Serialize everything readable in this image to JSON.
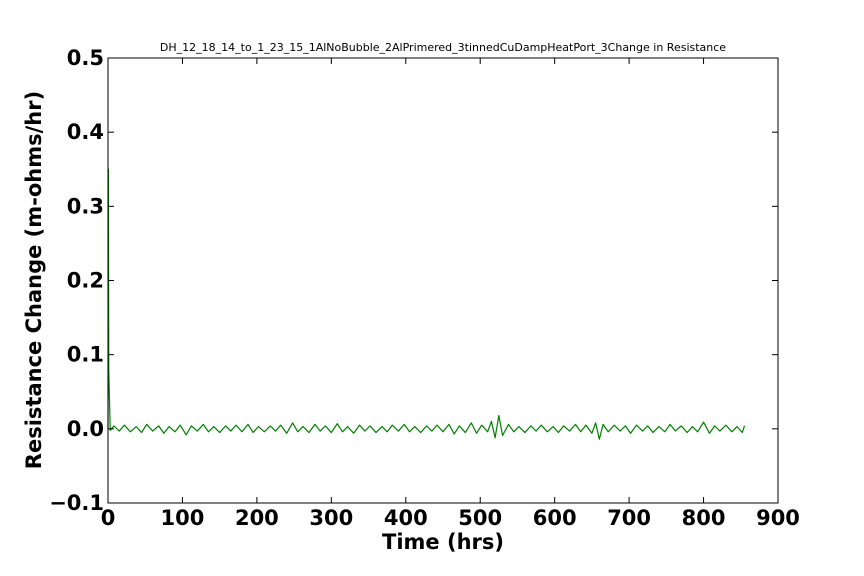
{
  "chart_data": {
    "type": "line",
    "title": "DH_12_18_14_to_1_23_15_1AlNoBubble_2AlPrimered_3tinnedCuDampHeatPort_3Change in Resistance",
    "xlabel": "Time (hrs)",
    "ylabel": "Resistance Change (m-ohms/hr)",
    "xlim": [
      0,
      900
    ],
    "ylim": [
      -0.1,
      0.5
    ],
    "xticks": [
      0,
      100,
      200,
      300,
      400,
      500,
      600,
      700,
      800,
      900
    ],
    "xtick_labels": [
      "0",
      "100",
      "200",
      "300",
      "400",
      "500",
      "600",
      "700",
      "800",
      "900"
    ],
    "yticks": [
      -0.1,
      0.0,
      0.1,
      0.2,
      0.3,
      0.4,
      0.5
    ],
    "ytick_labels": [
      "−0.1",
      "0.0",
      "0.1",
      "0.2",
      "0.3",
      "0.4",
      "0.5"
    ],
    "grid": false,
    "series": [
      {
        "color": "#007f00",
        "x": [
          0,
          0.5,
          1,
          3,
          8,
          15,
          22,
          30,
          38,
          45,
          52,
          60,
          68,
          75,
          82,
          90,
          97,
          105,
          112,
          120,
          128,
          135,
          142,
          150,
          158,
          165,
          172,
          180,
          188,
          195,
          202,
          210,
          218,
          225,
          232,
          240,
          248,
          255,
          262,
          270,
          278,
          285,
          292,
          300,
          308,
          315,
          322,
          330,
          338,
          345,
          352,
          360,
          368,
          375,
          382,
          390,
          398,
          405,
          412,
          420,
          428,
          435,
          442,
          450,
          458,
          465,
          472,
          480,
          488,
          495,
          502,
          510,
          515,
          520,
          525,
          530,
          538,
          545,
          552,
          560,
          568,
          575,
          582,
          590,
          598,
          605,
          612,
          620,
          628,
          635,
          642,
          650,
          655,
          660,
          665,
          672,
          680,
          688,
          695,
          702,
          710,
          718,
          725,
          732,
          740,
          748,
          755,
          762,
          770,
          778,
          785,
          792,
          800,
          808,
          815,
          822,
          830,
          838,
          845,
          852,
          855
        ],
        "y": [
          0.0,
          0.35,
          0.08,
          -0.002,
          0.004,
          -0.003,
          0.005,
          -0.004,
          0.003,
          -0.005,
          0.006,
          -0.003,
          0.004,
          -0.006,
          0.003,
          -0.004,
          0.005,
          -0.008,
          0.004,
          -0.003,
          0.006,
          -0.004,
          0.003,
          -0.005,
          0.004,
          -0.003,
          0.005,
          -0.004,
          0.006,
          -0.005,
          0.003,
          -0.004,
          0.004,
          -0.003,
          0.005,
          -0.006,
          0.008,
          -0.004,
          0.003,
          -0.005,
          0.006,
          -0.003,
          0.004,
          -0.005,
          0.007,
          -0.004,
          0.003,
          -0.006,
          0.005,
          -0.003,
          0.004,
          -0.005,
          0.003,
          -0.004,
          0.005,
          -0.003,
          0.006,
          -0.004,
          0.003,
          -0.005,
          0.004,
          -0.003,
          0.005,
          -0.004,
          0.006,
          -0.007,
          0.004,
          -0.005,
          0.008,
          -0.006,
          0.005,
          -0.004,
          0.01,
          -0.012,
          0.018,
          -0.009,
          0.006,
          -0.004,
          0.003,
          -0.005,
          0.004,
          -0.003,
          0.005,
          -0.004,
          0.003,
          -0.005,
          0.004,
          -0.003,
          0.006,
          -0.004,
          0.005,
          -0.006,
          0.008,
          -0.014,
          0.006,
          -0.004,
          0.005,
          -0.003,
          0.004,
          -0.006,
          0.005,
          -0.003,
          0.004,
          -0.005,
          0.003,
          -0.004,
          0.006,
          -0.003,
          0.004,
          -0.005,
          0.003,
          -0.004,
          0.009,
          -0.006,
          0.004,
          -0.003,
          0.005,
          -0.004,
          0.003,
          -0.005,
          0.004
        ]
      }
    ]
  }
}
